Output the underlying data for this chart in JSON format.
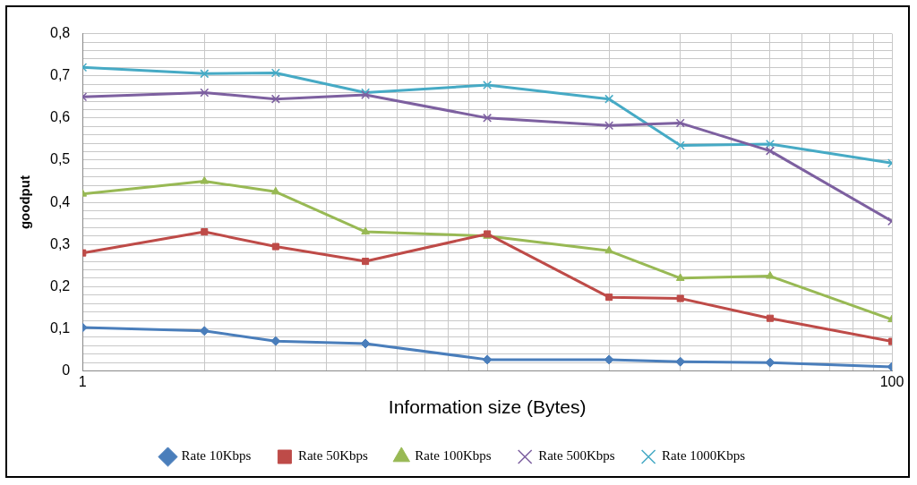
{
  "chart_data": {
    "type": "line",
    "xlabel": "Information size (Bytes)",
    "ylabel": "goodput",
    "log": "x",
    "grid": true,
    "legend": "bottom",
    "x": [
      1,
      2,
      3,
      5,
      10,
      20,
      30,
      50,
      100
    ],
    "xlim": [
      1,
      100
    ],
    "xticks": [
      {
        "value": 1,
        "label": "1"
      },
      {
        "value": 2,
        "label": null
      },
      {
        "value": 3,
        "label": null
      },
      {
        "value": 4,
        "label": null
      },
      {
        "value": 5,
        "label": null
      },
      {
        "value": 6,
        "label": null
      },
      {
        "value": 7,
        "label": null
      },
      {
        "value": 8,
        "label": null
      },
      {
        "value": 9,
        "label": null
      },
      {
        "value": 10,
        "label": null
      },
      {
        "value": 20,
        "label": null
      },
      {
        "value": 30,
        "label": null
      },
      {
        "value": 40,
        "label": null
      },
      {
        "value": 50,
        "label": null
      },
      {
        "value": 60,
        "label": null
      },
      {
        "value": 70,
        "label": null
      },
      {
        "value": 80,
        "label": null
      },
      {
        "value": 90,
        "label": null
      },
      {
        "value": 100,
        "label": "100"
      }
    ],
    "ylim": [
      0,
      0.8
    ],
    "yticks": [
      {
        "value": 0,
        "label": "0"
      },
      {
        "value": 0.02,
        "label": null
      },
      {
        "value": 0.04,
        "label": null
      },
      {
        "value": 0.06,
        "label": null
      },
      {
        "value": 0.08,
        "label": null
      },
      {
        "value": 0.1,
        "label": "0,1"
      },
      {
        "value": 0.12,
        "label": null
      },
      {
        "value": 0.14,
        "label": null
      },
      {
        "value": 0.16,
        "label": null
      },
      {
        "value": 0.18,
        "label": null
      },
      {
        "value": 0.2,
        "label": "0,2"
      },
      {
        "value": 0.22,
        "label": null
      },
      {
        "value": 0.24,
        "label": null
      },
      {
        "value": 0.26,
        "label": null
      },
      {
        "value": 0.28,
        "label": null
      },
      {
        "value": 0.3,
        "label": "0,3"
      },
      {
        "value": 0.32,
        "label": null
      },
      {
        "value": 0.34,
        "label": null
      },
      {
        "value": 0.36,
        "label": null
      },
      {
        "value": 0.38,
        "label": null
      },
      {
        "value": 0.4,
        "label": "0,4"
      },
      {
        "value": 0.42,
        "label": null
      },
      {
        "value": 0.44,
        "label": null
      },
      {
        "value": 0.46,
        "label": null
      },
      {
        "value": 0.48,
        "label": null
      },
      {
        "value": 0.5,
        "label": "0,5"
      },
      {
        "value": 0.52,
        "label": null
      },
      {
        "value": 0.54,
        "label": null
      },
      {
        "value": 0.56,
        "label": null
      },
      {
        "value": 0.58,
        "label": null
      },
      {
        "value": 0.6,
        "label": "0,6"
      },
      {
        "value": 0.62,
        "label": null
      },
      {
        "value": 0.64,
        "label": null
      },
      {
        "value": 0.66,
        "label": null
      },
      {
        "value": 0.68,
        "label": null
      },
      {
        "value": 0.7,
        "label": "0,7"
      },
      {
        "value": 0.72,
        "label": null
      },
      {
        "value": 0.74,
        "label": null
      },
      {
        "value": 0.76,
        "label": null
      },
      {
        "value": 0.78,
        "label": null
      },
      {
        "value": 0.8,
        "label": "0,8"
      }
    ],
    "series": [
      {
        "name": "Rate 10Kbps",
        "color": "#4a7ebb",
        "marker": "diamond",
        "values": [
          0.103,
          0.095,
          0.071,
          0.065,
          0.027,
          0.027,
          0.022,
          0.02,
          0.01
        ]
      },
      {
        "name": "Rate 50Kbps",
        "color": "#be4b48",
        "marker": "square",
        "values": [
          0.28,
          0.33,
          0.295,
          0.26,
          0.325,
          0.175,
          0.172,
          0.125,
          0.07
        ]
      },
      {
        "name": "Rate 100Kbps",
        "color": "#98b954",
        "marker": "triangle",
        "values": [
          0.42,
          0.45,
          0.425,
          0.33,
          0.32,
          0.285,
          0.22,
          0.225,
          0.122
        ]
      },
      {
        "name": "Rate 500Kbps",
        "color": "#7d60a0",
        "marker": "cross",
        "values": [
          0.65,
          0.66,
          0.645,
          0.655,
          0.6,
          0.582,
          0.588,
          0.522,
          0.355
        ]
      },
      {
        "name": "Rate 1000Kbps",
        "color": "#46aac5",
        "marker": "cross",
        "values": [
          0.72,
          0.705,
          0.707,
          0.66,
          0.678,
          0.645,
          0.535,
          0.538,
          0.493
        ]
      }
    ]
  }
}
